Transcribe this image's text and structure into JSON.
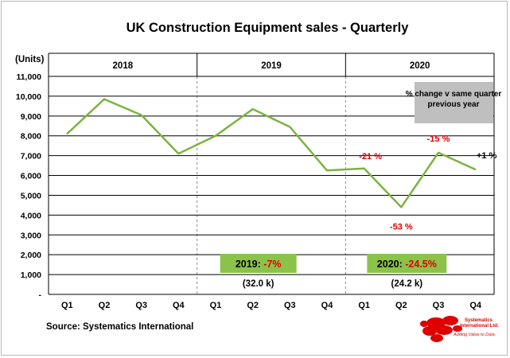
{
  "chart_data": {
    "type": "line",
    "title": "UK Construction  Equipment sales - Quarterly",
    "ylabel": "(Units)",
    "ylim": [
      0,
      11000
    ],
    "yticks": [
      "-",
      "1,000",
      "2,000",
      "3,000",
      "4,000",
      "5,000",
      "6,000",
      "7,000",
      "8,000",
      "9,000",
      "10,000",
      "11,000"
    ],
    "years": [
      "2018",
      "2019",
      "2020"
    ],
    "categories": [
      "Q1",
      "Q2",
      "Q3",
      "Q4",
      "Q1",
      "Q2",
      "Q3",
      "Q4",
      "Q1",
      "Q2",
      "Q3",
      "Q4"
    ],
    "series": [
      {
        "values": [
          8100,
          9850,
          9050,
          7100,
          8000,
          9350,
          8450,
          6250,
          6350,
          4400,
          7150,
          6300
        ]
      }
    ],
    "point_labels": [
      {
        "index": 8,
        "text": "-21 %",
        "color": "#e00000"
      },
      {
        "index": 9,
        "text": "-53 %",
        "color": "#e00000"
      },
      {
        "index": 10,
        "text": "-15 %",
        "color": "#e00000"
      },
      {
        "index": 11,
        "text": "+1 %",
        "color": "#000000"
      }
    ],
    "note": "% change v same quarter previous year",
    "year_totals": [
      {
        "year_text": "2019:",
        "change_text": "-7%",
        "total_text": "(32.0 k)"
      },
      {
        "year_text": "2020:",
        "change_text": "-24.5%",
        "total_text": "(24.2 k)"
      }
    ],
    "source": "Source: Systematics International",
    "logo_text": [
      "Systematics",
      "International Ltd.",
      "Adding Value to Data"
    ],
    "colors": {
      "line": "#7cb342",
      "total_box": "#8bc34a",
      "note_box": "#bfbfbf",
      "negative": "#e00000",
      "frame": "#b8b8b8",
      "grid": "#000000"
    }
  }
}
